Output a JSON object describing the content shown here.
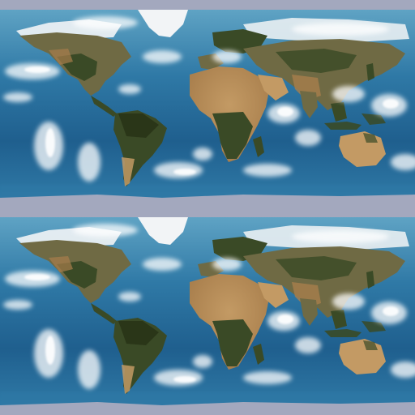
{
  "image": {
    "description_kind": "tiled-texture",
    "tiles": [
      {
        "id": "tile-top",
        "content": "world-map-with-clouds"
      },
      {
        "id": "tile-bottom",
        "content": "world-map-with-clouds"
      }
    ]
  },
  "colors": {
    "polar_band": "#a3a8be",
    "ocean_deep": "#1f5f8e",
    "ocean_mid": "#2f79a6",
    "ocean_shallow": "#5fa3c4",
    "ice": "#f2f4f6",
    "desert": "#c39a64",
    "desert_dark": "#a87e4c",
    "forest": "#3a4a26",
    "forest_dark": "#2a3618",
    "steppe": "#6f6a44",
    "cloud": "#ffffff"
  }
}
